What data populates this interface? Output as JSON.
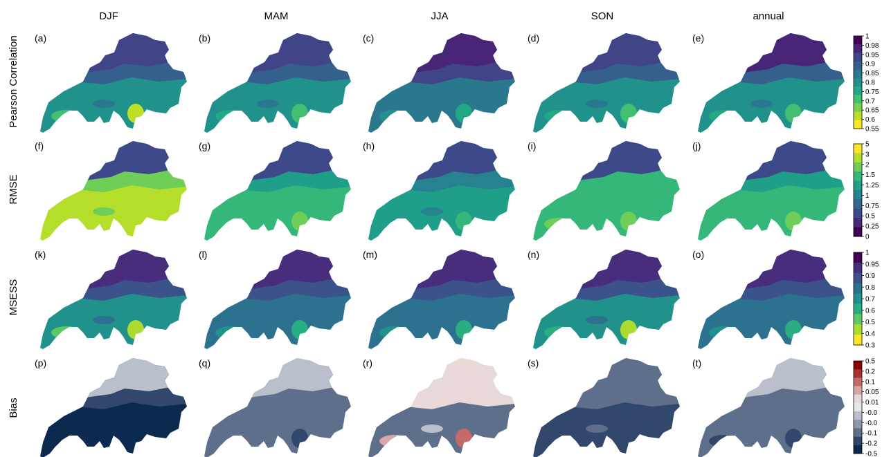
{
  "chart_data": {
    "type": "heatmap",
    "columns": [
      "DJF",
      "MAM",
      "JJA",
      "SON",
      "annual"
    ],
    "rows": [
      {
        "label": "Pearson Correlation",
        "panels": [
          "(a)",
          "(b)",
          "(c)",
          "(d)",
          "(e)"
        ],
        "colorbar": {
          "ticks": [
            "1",
            "0.98",
            "0.95",
            "0.9",
            "0.85",
            "0.8",
            "0.75",
            "0.7",
            "0.65",
            "0.6",
            "0.55"
          ],
          "colors": [
            "#440154",
            "#482576",
            "#414487",
            "#35608d",
            "#2a788e",
            "#21918c",
            "#22a884",
            "#43bf71",
            "#7ad151",
            "#bddf26",
            "#fde725"
          ]
        },
        "levels": [
          {
            "north": 0.97,
            "mid": 0.92,
            "south": 0.82,
            "hot": 0.62
          },
          {
            "north": 0.97,
            "mid": 0.94,
            "south": 0.84,
            "hot": 0.72
          },
          {
            "north": 0.98,
            "mid": 0.95,
            "south": 0.85,
            "hot": 0.75
          },
          {
            "north": 0.97,
            "mid": 0.93,
            "south": 0.83,
            "hot": 0.7
          },
          {
            "north": 0.98,
            "mid": 0.93,
            "south": 0.84,
            "hot": 0.72
          }
        ]
      },
      {
        "label": "RMSE",
        "panels": [
          "(f)",
          "(g)",
          "(h)",
          "(i)",
          "(j)"
        ],
        "colorbar": {
          "ticks": [
            "5",
            "3",
            "2",
            "1.5",
            "1.25",
            "1",
            "0.75",
            "0.5",
            "0.25",
            "0"
          ],
          "colors": [
            "#fde725",
            "#b5de2b",
            "#6ece58",
            "#35b779",
            "#1f9e89",
            "#26828e",
            "#31688e",
            "#3e4989",
            "#482878",
            "#440154"
          ]
        },
        "levels": [
          {
            "north": 0.7,
            "mid": 2.2,
            "south": 3.5,
            "hot": 4.5
          },
          {
            "north": 0.6,
            "mid": 1.4,
            "south": 1.6,
            "hot": 2.2
          },
          {
            "north": 0.6,
            "mid": 1.1,
            "south": 1.3,
            "hot": 1.6
          },
          {
            "north": 0.6,
            "mid": 1.5,
            "south": 1.8,
            "hot": 2.5
          },
          {
            "north": 0.6,
            "mid": 1.4,
            "south": 1.7,
            "hot": 2.2
          }
        ]
      },
      {
        "label": "MSESS",
        "panels": [
          "(k)",
          "(l)",
          "(m)",
          "(n)",
          "(o)"
        ],
        "colorbar": {
          "ticks": [
            "1",
            "0.95",
            "0.9",
            "0.8",
            "0.7",
            "0.6",
            "0.5",
            "0.4",
            "0.3"
          ],
          "colors": [
            "#440154",
            "#472d7b",
            "#3b528b",
            "#2c728e",
            "#21918c",
            "#28ae80",
            "#5ec962",
            "#addc30",
            "#fde725"
          ]
        },
        "levels": [
          {
            "north": 0.96,
            "mid": 0.9,
            "south": 0.72,
            "hot": 0.4
          },
          {
            "north": 0.96,
            "mid": 0.92,
            "south": 0.8,
            "hot": 0.6
          },
          {
            "north": 0.97,
            "mid": 0.93,
            "south": 0.82,
            "hot": 0.65
          },
          {
            "north": 0.96,
            "mid": 0.91,
            "south": 0.75,
            "hot": 0.45
          },
          {
            "north": 0.97,
            "mid": 0.92,
            "south": 0.8,
            "hot": 0.6
          }
        ]
      },
      {
        "label": "Bias",
        "panels": [
          "(p)",
          "(q)",
          "(r)",
          "(s)",
          "(t)"
        ],
        "colorbar": {
          "ticks": [
            "0.5",
            "0.2",
            "0.1",
            "0.05",
            "0.01",
            "-0.0",
            "-0.0",
            "-0.1",
            "-0.2",
            "-0.5"
          ],
          "colors": [
            "#8b0000",
            "#a83232",
            "#c46a6a",
            "#d9a6a6",
            "#e8d8d8",
            "#e6e6e6",
            "#b9bfcb",
            "#8c97ab",
            "#5e6f8c",
            "#31476b",
            "#0c2a50"
          ]
        },
        "levels": [
          {
            "north": 0.0,
            "mid": -0.15,
            "south": -0.4,
            "hot": -0.6
          },
          {
            "north": 0.0,
            "mid": -0.02,
            "south": -0.08,
            "hot": -0.12
          },
          {
            "north": 0.03,
            "mid": 0.02,
            "south": -0.01,
            "hot": 0.15
          },
          {
            "north": -0.02,
            "mid": -0.05,
            "south": -0.12,
            "hot": -0.18
          },
          {
            "north": 0.0,
            "mid": -0.04,
            "south": -0.1,
            "hot": -0.15
          }
        ]
      }
    ]
  }
}
